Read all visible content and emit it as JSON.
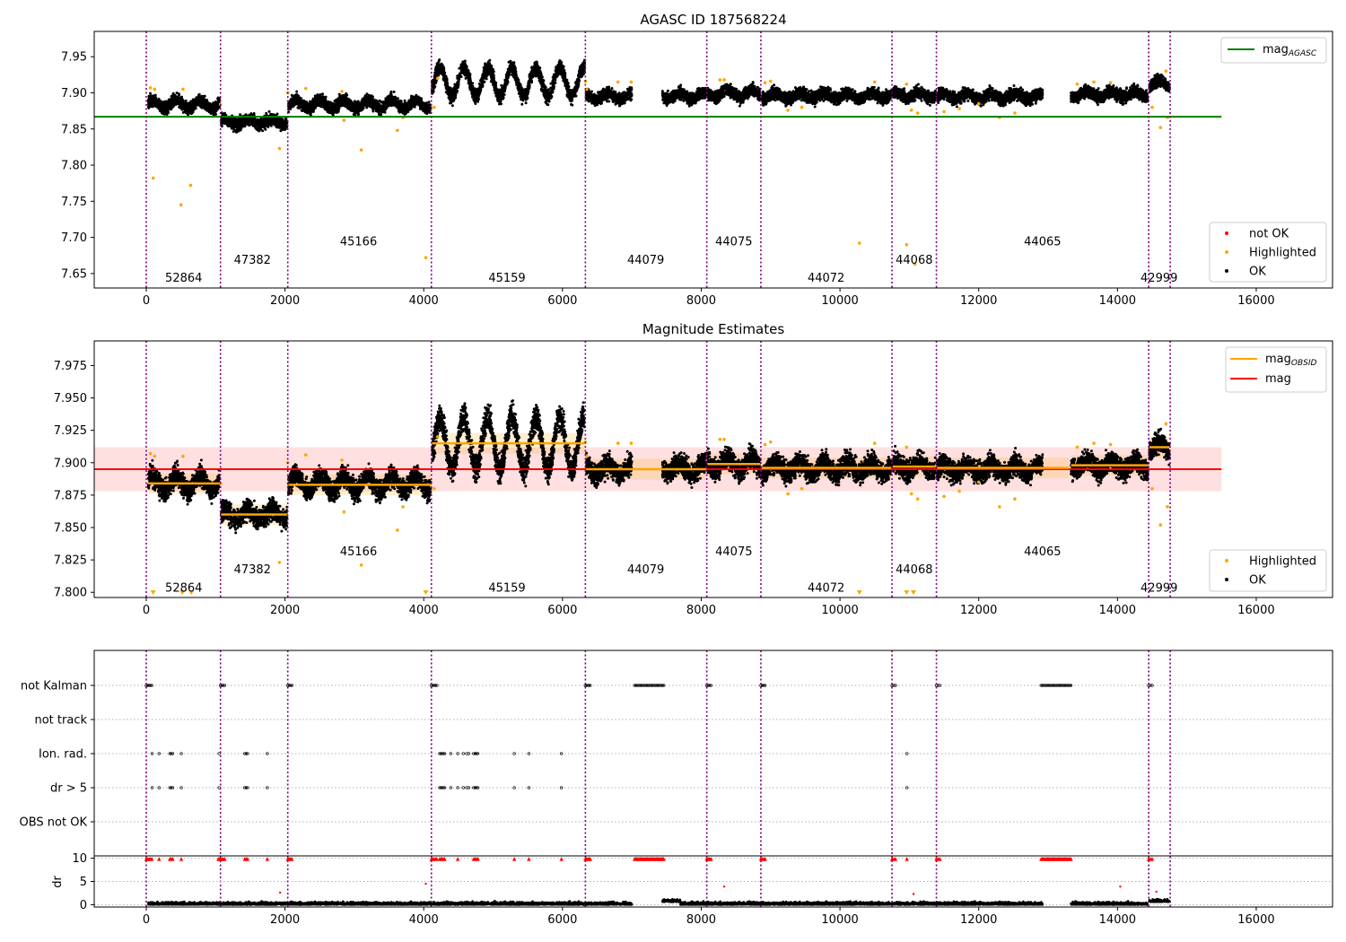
{
  "chart_data": [
    {
      "type": "scatter",
      "title": "AGASC ID 187568224",
      "xlim": [
        -750,
        17100
      ],
      "ylim": [
        7.63,
        7.985
      ],
      "xticks": [
        0,
        2000,
        4000,
        6000,
        8000,
        10000,
        12000,
        14000,
        16000
      ],
      "yticks": [
        7.65,
        7.7,
        7.75,
        7.8,
        7.85,
        7.9,
        7.95
      ],
      "grid": false,
      "obsid_boundaries": [
        0,
        1070,
        2040,
        4110,
        6330,
        8080,
        8860,
        10750,
        11390,
        14450,
        14760
      ],
      "obsids": [
        {
          "label": "52864",
          "x": 540,
          "y": 7.645
        },
        {
          "label": "47382",
          "x": 1530,
          "y": 7.67
        },
        {
          "label": "45166",
          "x": 3060,
          "y": 7.695
        },
        {
          "label": "45159",
          "x": 5200,
          "y": 7.645
        },
        {
          "label": "44079",
          "x": 7200,
          "y": 7.67
        },
        {
          "label": "44075",
          "x": 8470,
          "y": 7.695
        },
        {
          "label": "44072",
          "x": 9800,
          "y": 7.645
        },
        {
          "label": "44068",
          "x": 11070,
          "y": 7.67
        },
        {
          "label": "44065",
          "x": 12920,
          "y": 7.695
        },
        {
          "label": "42999",
          "x": 14600,
          "y": 7.645
        }
      ],
      "segments": [
        {
          "x0": 30,
          "x1": 1060,
          "mean": 7.884,
          "amp": 0.006,
          "noise": 0.004
        },
        {
          "x0": 1080,
          "x1": 2030,
          "mean": 7.86,
          "amp": 0.004,
          "noise": 0.004
        },
        {
          "x0": 2050,
          "x1": 4100,
          "mean": 7.884,
          "amp": 0.006,
          "noise": 0.004
        },
        {
          "x0": 4120,
          "x1": 6320,
          "mean": 7.915,
          "amp": 0.02,
          "noise": 0.005
        },
        {
          "x0": 6340,
          "x1": 7000,
          "mean": 7.895,
          "amp": 0.004,
          "noise": 0.004
        },
        {
          "x0": 7440,
          "x1": 8070,
          "mean": 7.896,
          "amp": 0.004,
          "noise": 0.004
        },
        {
          "x0": 8090,
          "x1": 8850,
          "mean": 7.899,
          "amp": 0.005,
          "noise": 0.004
        },
        {
          "x0": 8870,
          "x1": 10740,
          "mean": 7.896,
          "amp": 0.004,
          "noise": 0.004
        },
        {
          "x0": 10760,
          "x1": 11380,
          "mean": 7.897,
          "amp": 0.004,
          "noise": 0.004
        },
        {
          "x0": 11400,
          "x1": 12920,
          "mean": 7.895,
          "amp": 0.004,
          "noise": 0.004
        },
        {
          "x0": 13330,
          "x1": 14440,
          "mean": 7.898,
          "amp": 0.004,
          "noise": 0.004
        },
        {
          "x0": 14460,
          "x1": 14750,
          "mean": 7.912,
          "amp": 0.005,
          "noise": 0.004
        }
      ],
      "highlighted_points": [
        [
          60,
          7.907
        ],
        [
          120,
          7.905
        ],
        [
          100,
          7.782
        ],
        [
          500,
          7.745
        ],
        [
          640,
          7.772
        ],
        [
          530,
          7.905
        ],
        [
          1070,
          7.884
        ],
        [
          2040,
          7.9
        ],
        [
          1920,
          7.823
        ],
        [
          2300,
          7.906
        ],
        [
          2820,
          7.902
        ],
        [
          2850,
          7.862
        ],
        [
          3100,
          7.821
        ],
        [
          3620,
          7.848
        ],
        [
          3700,
          7.866
        ],
        [
          4030,
          7.672
        ],
        [
          4150,
          7.88
        ],
        [
          4200,
          7.92
        ],
        [
          6330,
          7.916
        ],
        [
          6350,
          7.905
        ],
        [
          6800,
          7.915
        ],
        [
          6990,
          7.915
        ],
        [
          8270,
          7.918
        ],
        [
          8330,
          7.918
        ],
        [
          8920,
          7.914
        ],
        [
          9000,
          7.916
        ],
        [
          9250,
          7.876
        ],
        [
          9450,
          7.88
        ],
        [
          10280,
          7.692
        ],
        [
          10500,
          7.915
        ],
        [
          10960,
          7.69
        ],
        [
          10960,
          7.912
        ],
        [
          11030,
          7.876
        ],
        [
          11080,
          7.663
        ],
        [
          11120,
          7.872
        ],
        [
          11500,
          7.874
        ],
        [
          11720,
          7.878
        ],
        [
          12000,
          7.885
        ],
        [
          12300,
          7.866
        ],
        [
          12520,
          7.872
        ],
        [
          13420,
          7.912
        ],
        [
          13660,
          7.915
        ],
        [
          13900,
          7.914
        ],
        [
          14500,
          7.88
        ],
        [
          14620,
          7.852
        ],
        [
          14700,
          7.93
        ],
        [
          14720,
          7.866
        ]
      ],
      "series": [
        {
          "name": "mag_AGASC",
          "y": 7.867,
          "x": [
            -750,
            15500
          ],
          "color": "#008000"
        }
      ],
      "legend_lines": [
        {
          "label": "mag",
          "sub": "AGASC",
          "color": "#008000"
        }
      ],
      "legend_markers": [
        {
          "label": "not OK",
          "color": "#ff0000"
        },
        {
          "label": "Highlighted",
          "color": "#ffa500"
        },
        {
          "label": "OK",
          "color": "#000000"
        }
      ]
    },
    {
      "type": "scatter",
      "title": "Magnitude Estimates",
      "xlim": [
        -750,
        17100
      ],
      "ylim": [
        7.796,
        7.994
      ],
      "xticks": [
        0,
        2000,
        4000,
        6000,
        8000,
        10000,
        12000,
        14000,
        16000
      ],
      "yticks": [
        7.8,
        7.825,
        7.85,
        7.875,
        7.9,
        7.925,
        7.95,
        7.975
      ],
      "grid": false,
      "mag": {
        "value": 7.895,
        "band": [
          7.878,
          7.912
        ],
        "x": [
          -750,
          15500
        ],
        "color": "#ff0000"
      },
      "obsid_means": [
        {
          "x0": 30,
          "x1": 1060,
          "y": 7.884
        },
        {
          "x0": 1080,
          "x1": 2030,
          "y": 7.86
        },
        {
          "x0": 2050,
          "x1": 4100,
          "y": 7.883
        },
        {
          "x0": 4120,
          "x1": 6320,
          "y": 7.915
        },
        {
          "x0": 6340,
          "x1": 8070,
          "y": 7.895
        },
        {
          "x0": 8090,
          "x1": 8850,
          "y": 7.899
        },
        {
          "x0": 8870,
          "x1": 10740,
          "y": 7.896
        },
        {
          "x0": 10760,
          "x1": 11380,
          "y": 7.897
        },
        {
          "x0": 11400,
          "x1": 13300,
          "y": 7.896
        },
        {
          "x0": 13330,
          "x1": 14440,
          "y": 7.898
        },
        {
          "x0": 14460,
          "x1": 14750,
          "y": 7.912
        }
      ],
      "out_of_range_markers_x": [
        100,
        520,
        650,
        4030,
        10280,
        10960,
        11060
      ],
      "obsids": [
        {
          "label": "52864",
          "x": 540,
          "y": 7.804
        },
        {
          "label": "47382",
          "x": 1530,
          "y": 7.818
        },
        {
          "label": "45166",
          "x": 3060,
          "y": 7.832
        },
        {
          "label": "45159",
          "x": 5200,
          "y": 7.804
        },
        {
          "label": "44079",
          "x": 7200,
          "y": 7.818
        },
        {
          "label": "44075",
          "x": 8470,
          "y": 7.832
        },
        {
          "label": "44072",
          "x": 9800,
          "y": 7.804
        },
        {
          "label": "44068",
          "x": 11070,
          "y": 7.818
        },
        {
          "label": "44065",
          "x": 12920,
          "y": 7.832
        },
        {
          "label": "42999",
          "x": 14600,
          "y": 7.804
        }
      ],
      "legend_lines": [
        {
          "label": "mag",
          "sub": "OBSID",
          "color": "#ffa500"
        },
        {
          "label": "mag",
          "sub": "",
          "color": "#ff0000"
        }
      ],
      "legend_markers": [
        {
          "label": "Highlighted",
          "color": "#ffa500"
        },
        {
          "label": "OK",
          "color": "#000000"
        }
      ]
    },
    {
      "type": "scatter",
      "title": "",
      "xlim": [
        -750,
        17100
      ],
      "flag_rows": [
        "not Kalman",
        "not track",
        "Ion. rad.",
        "dr > 5",
        "OBS not OK"
      ],
      "flags": {
        "not Kalman": [
          [
            0,
            80
          ],
          [
            1070,
            1130
          ],
          [
            2040,
            2100
          ],
          [
            4110,
            4190
          ],
          [
            6330,
            6400
          ],
          [
            7040,
            7460
          ],
          [
            8080,
            8140
          ],
          [
            8860,
            8920
          ],
          [
            10750,
            10800
          ],
          [
            11390,
            11440
          ],
          [
            12900,
            13330
          ],
          [
            14450,
            14500
          ]
        ],
        "not track": [],
        "Ion. rad.": [
          [
            80,
            90
          ],
          [
            180,
            190
          ],
          [
            340,
            380
          ],
          [
            500,
            510
          ],
          [
            1040,
            1060
          ],
          [
            1420,
            1460
          ],
          [
            1740,
            1750
          ],
          [
            4230,
            4300
          ],
          [
            4380,
            4400
          ],
          [
            4480,
            4500
          ],
          [
            4560,
            4580
          ],
          [
            4620,
            4650
          ],
          [
            4720,
            4780
          ],
          [
            5300,
            5310
          ],
          [
            5510,
            5520
          ],
          [
            5980,
            5990
          ],
          [
            10960,
            10970
          ]
        ],
        "dr > 5": [
          [
            80,
            90
          ],
          [
            180,
            190
          ],
          [
            340,
            380
          ],
          [
            500,
            510
          ],
          [
            1040,
            1060
          ],
          [
            1420,
            1460
          ],
          [
            1740,
            1750
          ],
          [
            4230,
            4300
          ],
          [
            4380,
            4400
          ],
          [
            4480,
            4500
          ],
          [
            4560,
            4580
          ],
          [
            4620,
            4650
          ],
          [
            4720,
            4780
          ],
          [
            5300,
            5310
          ],
          [
            5510,
            5520
          ],
          [
            5980,
            5990
          ],
          [
            10960,
            10970
          ]
        ],
        "OBS not OK": []
      },
      "dr": {
        "ylim": [
          -0.5,
          10.5
        ],
        "yticks": [
          0,
          5,
          10
        ],
        "ylabel": "dr",
        "clipped_x": [
          [
            0,
            80
          ],
          [
            180,
            190
          ],
          [
            340,
            380
          ],
          [
            500,
            510
          ],
          [
            1040,
            1130
          ],
          [
            1420,
            1460
          ],
          [
            1740,
            1750
          ],
          [
            2040,
            2100
          ],
          [
            4110,
            4190
          ],
          [
            4230,
            4300
          ],
          [
            4480,
            4500
          ],
          [
            4720,
            4780
          ],
          [
            5300,
            5310
          ],
          [
            5510,
            5520
          ],
          [
            5980,
            5990
          ],
          [
            6330,
            6400
          ],
          [
            7040,
            7460
          ],
          [
            8080,
            8140
          ],
          [
            8860,
            8920
          ],
          [
            10750,
            10800
          ],
          [
            10960,
            10970
          ],
          [
            11390,
            11440
          ],
          [
            12900,
            13330
          ],
          [
            14450,
            14500
          ]
        ],
        "isolated_points": [
          [
            4030,
            4.5
          ],
          [
            1930,
            2.6
          ],
          [
            8330,
            3.9
          ],
          [
            11060,
            2.3
          ],
          [
            14040,
            3.9
          ],
          [
            14560,
            2.8
          ]
        ]
      }
    }
  ]
}
